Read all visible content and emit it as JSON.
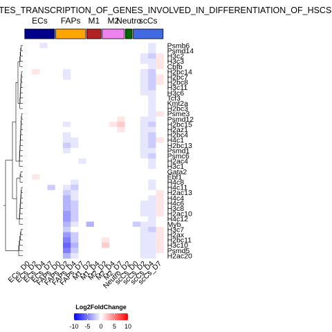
{
  "chart_data": {
    "type": "heatmap",
    "title": "ATES_TRANSCRIPTION_OF_GENES_INVOLVED_IN_DIFFERENTIATION_OF_HSCS",
    "columns": [
      "ECs_D0",
      "ECs_D2",
      "ECs_D4",
      "ECs_D7",
      "FAPs_D0",
      "FAPs_D2",
      "FAPs_D4",
      "FAPs_D7",
      "M1_D2",
      "M1_D4",
      "M2_D2",
      "M2_D4",
      "M2_D7",
      "Neutro_D2",
      "scCs_D0",
      "scCs_D2",
      "scCs_D4",
      "scCs_D7"
    ],
    "rows": [
      "Psmb6",
      "Psmd14",
      "H3c2",
      "H3c3",
      "Cbfb",
      "H2bc14",
      "H2bc7",
      "H2bc8",
      "H3c11",
      "H3c6",
      "Tcf3",
      "Kmt2a",
      "H2bc3",
      "Psme3",
      "Psmd12",
      "H2bc15",
      "H2az1",
      "H2bc4",
      "H4c1",
      "H2bc13",
      "Psmd1",
      "Psmc6",
      "H2ac4",
      "H3c1",
      "Gata2",
      "Ebf1",
      "H4c8",
      "H4c11",
      "H2ac13",
      "H4c4",
      "H4c6",
      "H3c8",
      "H2ac10",
      "H4c12",
      "Myb",
      "H3c7",
      "H2ax",
      "H2bc11",
      "H3c10",
      "Psmd5",
      "H2ac20"
    ],
    "values": [
      [
        0,
        0,
        -1,
        0,
        0,
        0,
        0,
        0,
        0,
        0,
        0,
        0,
        0,
        0,
        0,
        0,
        -1,
        0
      ],
      [
        0,
        0,
        0,
        0,
        0,
        0,
        0,
        0,
        0,
        0,
        0,
        0,
        0,
        0,
        0,
        0,
        -1,
        0
      ],
      [
        0,
        0,
        0,
        0,
        0,
        0,
        0,
        0,
        0,
        0,
        0,
        0,
        0,
        0,
        0,
        -1,
        -2,
        1
      ],
      [
        0,
        0,
        0,
        0,
        0,
        0,
        0,
        0,
        0,
        0,
        0,
        0,
        0,
        0,
        0,
        -1,
        -1,
        1
      ],
      [
        0,
        0,
        0,
        0,
        0,
        0,
        0,
        0,
        0,
        0,
        0,
        0,
        0,
        0,
        0,
        0,
        -1,
        1
      ],
      [
        0,
        1,
        0,
        0,
        0,
        -1,
        0,
        0,
        0,
        0,
        0,
        0,
        0,
        0,
        0,
        -1,
        -2,
        0
      ],
      [
        0,
        0,
        0,
        0,
        0,
        -1,
        0,
        0,
        0,
        0,
        0,
        0,
        0,
        0,
        0,
        -1,
        -2,
        1
      ],
      [
        0,
        0,
        0,
        0,
        0,
        0,
        0,
        0,
        0,
        0,
        0,
        0,
        0,
        0,
        0,
        -1,
        -2,
        1
      ],
      [
        0,
        0,
        0,
        0,
        0,
        0,
        0,
        0,
        0,
        0,
        0,
        0,
        0,
        0,
        0,
        -1,
        -2,
        0
      ],
      [
        0,
        0,
        0,
        0,
        0,
        0,
        0,
        0,
        0,
        0,
        0,
        0,
        0,
        0,
        0,
        -1,
        -1,
        0
      ],
      [
        0,
        0,
        0,
        0,
        0,
        0,
        0,
        0,
        0,
        0,
        0,
        0,
        0,
        0,
        0,
        0,
        -1,
        0
      ],
      [
        0,
        0,
        0,
        0,
        0,
        0,
        0,
        0,
        0,
        0,
        0,
        0,
        0,
        0,
        0,
        0,
        -1,
        0
      ],
      [
        0,
        0,
        0,
        0,
        0,
        0,
        0,
        0,
        0,
        0,
        0,
        0,
        0,
        0,
        0,
        0,
        -1,
        0
      ],
      [
        0,
        0,
        0,
        0,
        0,
        0,
        0,
        0,
        0,
        0,
        0,
        0,
        0,
        0,
        0,
        0,
        -1,
        1
      ],
      [
        0,
        0,
        0,
        0,
        0,
        0,
        0,
        0,
        0,
        0,
        0,
        0,
        1,
        0,
        0,
        -1,
        -1,
        0
      ],
      [
        0,
        0,
        0,
        0,
        0,
        -1,
        0,
        0,
        0,
        0,
        0,
        1,
        2,
        0,
        0,
        -1,
        -2,
        0
      ],
      [
        0,
        0,
        0,
        0,
        0,
        0,
        0,
        0,
        0,
        0,
        0,
        0,
        1,
        0,
        0,
        -1,
        -1,
        0
      ],
      [
        0,
        0,
        0,
        0,
        0,
        -1,
        0,
        0,
        0,
        0,
        0,
        0,
        0,
        0,
        0,
        -1,
        -2,
        0
      ],
      [
        0,
        0,
        0,
        0,
        0,
        -1,
        -1,
        0,
        0,
        0,
        0,
        0,
        0,
        0,
        0,
        -1,
        -2,
        1
      ],
      [
        0,
        0,
        0,
        0,
        0,
        -2,
        -1,
        0,
        0,
        0,
        0,
        0,
        0,
        0,
        0,
        -1,
        -2,
        0
      ],
      [
        0,
        0,
        0,
        0,
        0,
        -1,
        0,
        0,
        0,
        0,
        0,
        0,
        0,
        0,
        0,
        -1,
        -1,
        0
      ],
      [
        0,
        0,
        0,
        0,
        0,
        0,
        0,
        0,
        0,
        0,
        0,
        0,
        0,
        0,
        0,
        -1,
        -2,
        0
      ],
      [
        0,
        0,
        0,
        0,
        0,
        0,
        0,
        -1,
        0,
        0,
        0,
        0,
        0,
        0,
        0,
        0,
        -1,
        0
      ],
      [
        0,
        0,
        0,
        0,
        0,
        0,
        0,
        0,
        0,
        0,
        0,
        0,
        0,
        0,
        0,
        0,
        -1,
        0
      ],
      [
        0,
        0,
        0,
        0,
        0,
        0,
        0,
        0,
        0,
        0,
        0,
        0,
        0,
        0,
        0,
        0,
        0,
        0
      ],
      [
        0,
        1,
        0,
        0,
        0,
        0,
        0,
        0,
        0,
        0,
        0,
        0,
        0,
        0,
        0,
        0,
        0,
        0
      ],
      [
        0,
        0,
        0,
        0,
        0,
        0,
        -1,
        0,
        0,
        0,
        0,
        0,
        0,
        0,
        0,
        0,
        -1,
        0
      ],
      [
        0,
        0,
        0,
        -2,
        0,
        -1,
        -2,
        0,
        0,
        0,
        0,
        0,
        0,
        0,
        0,
        0,
        -1,
        0
      ],
      [
        0,
        0,
        0,
        0,
        0,
        -2,
        -1,
        0,
        0,
        0,
        0,
        0,
        0,
        0,
        0,
        0,
        0,
        1
      ],
      [
        0,
        0,
        0,
        0,
        0,
        -3,
        -1,
        0,
        0,
        0,
        0,
        0,
        0,
        0,
        0,
        0,
        -1,
        1
      ],
      [
        0,
        0,
        0,
        0,
        0,
        -3,
        -2,
        0,
        0,
        0,
        0,
        0,
        0,
        0,
        0,
        -1,
        -1,
        1
      ],
      [
        0,
        0,
        0,
        0,
        0,
        -3,
        -2,
        0,
        0,
        0,
        0,
        0,
        0,
        0,
        0,
        -1,
        -1,
        1
      ],
      [
        0,
        0,
        0,
        0,
        0,
        -4,
        -2,
        0,
        0,
        0,
        0,
        0,
        0,
        0,
        0,
        -1,
        -1,
        1
      ],
      [
        0,
        0,
        0,
        0,
        0,
        -4,
        -2,
        0,
        0,
        0,
        0,
        0,
        0,
        0,
        0,
        0,
        -1,
        0
      ],
      [
        0,
        0,
        0,
        0,
        0,
        -3,
        -1,
        0,
        -3,
        0,
        0,
        0,
        0,
        0,
        -2,
        -1,
        -1,
        0
      ],
      [
        0,
        0,
        0,
        0,
        0,
        -2,
        0,
        0,
        0,
        0,
        0,
        0,
        0,
        0,
        0,
        -1,
        -2,
        1
      ],
      [
        0,
        0,
        0,
        0,
        0,
        -4,
        -2,
        0,
        0,
        0,
        0,
        0,
        0,
        0,
        0,
        -1,
        -1,
        1
      ],
      [
        0,
        0,
        0,
        0,
        0,
        -5,
        -2,
        0,
        0,
        0,
        1,
        0,
        0,
        0,
        0,
        -1,
        -1,
        1
      ],
      [
        0,
        0,
        0,
        0,
        0,
        -6,
        -3,
        0,
        0,
        0,
        2,
        0,
        0,
        0,
        0,
        -1,
        -1,
        1
      ],
      [
        0,
        0,
        0,
        0,
        0,
        -5,
        -2,
        0,
        0,
        0,
        0,
        0,
        0,
        0,
        0,
        -1,
        -1,
        1
      ],
      [
        0,
        0,
        0,
        0,
        0,
        -3,
        -1,
        0,
        0,
        0,
        0,
        0,
        0,
        0,
        0,
        -1,
        -1,
        0
      ]
    ],
    "groups": [
      {
        "name": "ECs",
        "color": "#00008B",
        "span": [
          0,
          3
        ]
      },
      {
        "name": "FAPs",
        "color": "#FFA500",
        "span": [
          4,
          7
        ]
      },
      {
        "name": "M1",
        "color": "#B22222",
        "span": [
          8,
          9
        ]
      },
      {
        "name": "M2",
        "color": "#EE82EE",
        "span": [
          10,
          12
        ]
      },
      {
        "name": "Neutro",
        "color": "#006400",
        "span": [
          13,
          13
        ]
      },
      {
        "name": "scCs",
        "color": "#4169E1",
        "span": [
          14,
          17
        ]
      }
    ],
    "legend": {
      "title": "Log2FoldChange",
      "ticks": [
        -10,
        -5,
        0,
        5,
        10
      ],
      "range": [
        -10,
        10
      ],
      "colors": {
        "low": "#0000FF",
        "mid": "#FFFFFF",
        "high": "#FF0000"
      }
    },
    "grid": false
  }
}
